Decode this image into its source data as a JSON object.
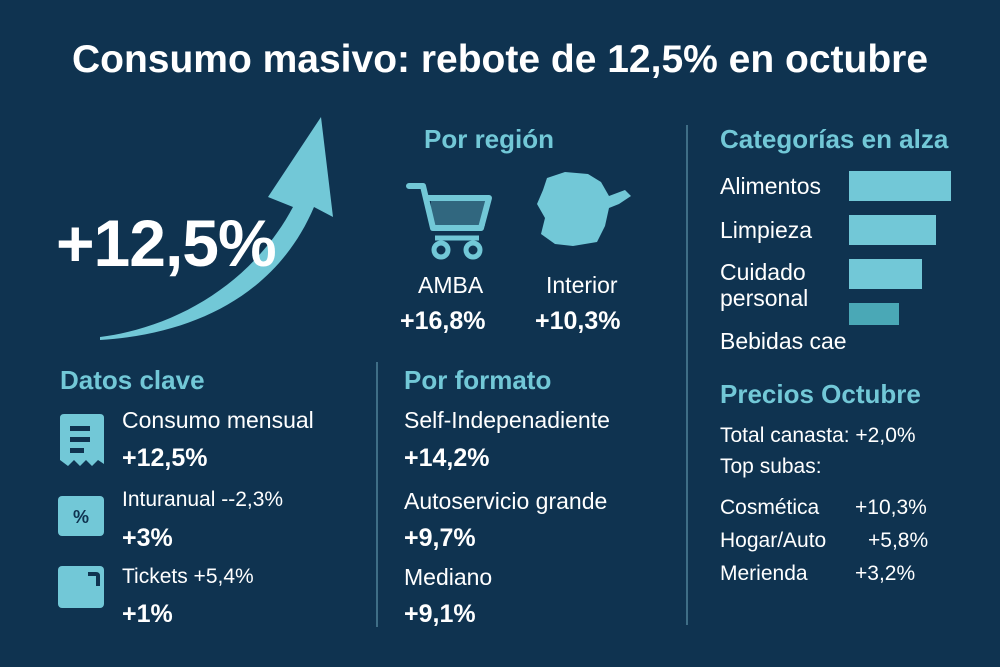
{
  "title": "Consumo masivo: rebote de 12,5% en octubre",
  "hero": {
    "value": "+12,5%"
  },
  "region": {
    "heading": "Por región",
    "items": [
      {
        "name": "AMBA",
        "value": "+16,8%",
        "icon": "shopping-cart-icon"
      },
      {
        "name": "Interior",
        "value": "+10,3%",
        "icon": "map-icon"
      }
    ]
  },
  "categorias": {
    "heading": "Categorías en alza",
    "items": [
      {
        "label": "Alimentos"
      },
      {
        "label": "Limpieza"
      },
      {
        "label": "Cuidado personal"
      },
      {
        "label": "Bebidas cae"
      }
    ],
    "bar_color": "#72c8d7"
  },
  "datos": {
    "heading": "Datos clave",
    "items": [
      {
        "label": "Consumo mensual",
        "value": "+12,5%",
        "icon": "receipt-icon"
      },
      {
        "label": "Inturanual --2,3%",
        "value": "+3%",
        "icon": "percent-icon"
      },
      {
        "label": "Tickets +5,4%",
        "value": "+1%",
        "icon": "wallet-icon"
      }
    ]
  },
  "formato": {
    "heading": "Por formato",
    "items": [
      {
        "label": "Self-Indepenadiente",
        "value": "+14,2%"
      },
      {
        "label": "Autoservicio grande",
        "value": "+9,7%"
      },
      {
        "label": "Mediano",
        "value": "+9,1%"
      }
    ]
  },
  "precios": {
    "heading": "Precios Octubre",
    "canasta": "Total canasta: +2,0%",
    "top_subas": "Top subas:",
    "items": [
      {
        "name": "Cosmética",
        "value": "+10,3%"
      },
      {
        "name": "Hogar/Auto",
        "value": "+5,8%"
      },
      {
        "name": "Merienda",
        "value": "+3,2%"
      }
    ]
  },
  "colors": {
    "background": "#0f3350",
    "accent": "#72c8d7",
    "text": "#ffffff"
  }
}
